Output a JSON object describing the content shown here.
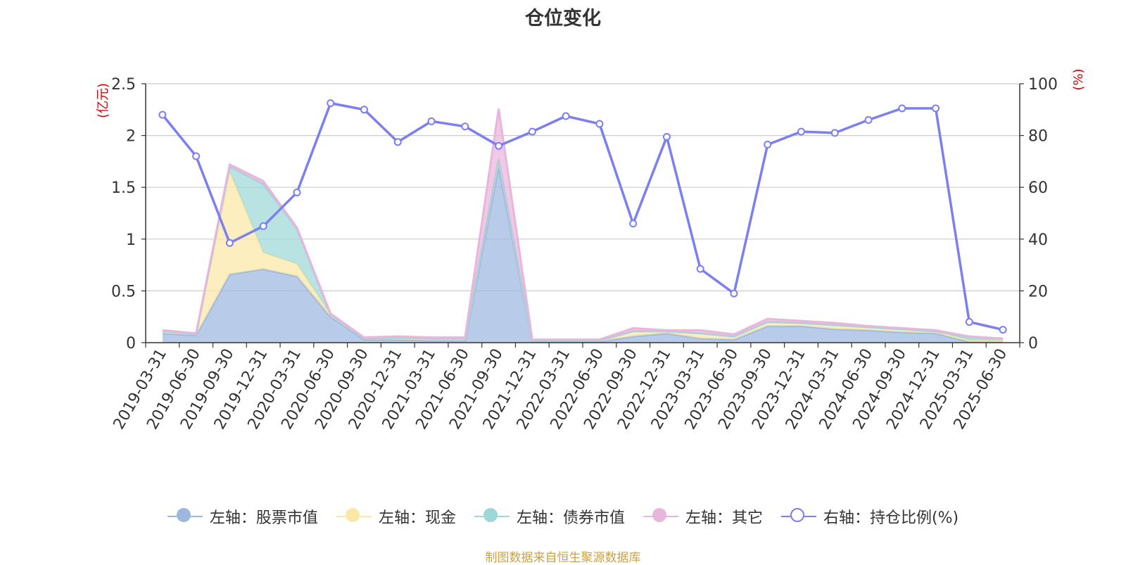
{
  "chart_data": {
    "type": "area",
    "title": "仓位变化",
    "left_axis_unit": "(亿元)",
    "right_axis_unit": "(%)",
    "left_ylim": [
      0,
      2.5
    ],
    "right_ylim": [
      0,
      100
    ],
    "left_ticks": [
      "0",
      "0.5",
      "1",
      "1.5",
      "2",
      "2.5"
    ],
    "right_ticks": [
      "0",
      "20",
      "40",
      "60",
      "80",
      "100"
    ],
    "grid": true,
    "legend_position": "bottom",
    "categories": [
      "2019-03-31",
      "2019-06-30",
      "2019-09-30",
      "2019-12-31",
      "2020-03-31",
      "2020-06-30",
      "2020-09-30",
      "2020-12-31",
      "2021-03-31",
      "2021-06-30",
      "2021-09-30",
      "2021-12-31",
      "2022-03-31",
      "2022-06-30",
      "2022-09-30",
      "2022-12-31",
      "2023-03-31",
      "2023-06-30",
      "2023-09-30",
      "2023-12-31",
      "2024-03-31",
      "2024-06-30",
      "2024-09-30",
      "2024-12-31",
      "2025-03-31",
      "2025-06-30"
    ],
    "series": [
      {
        "name": "左轴：股票市值",
        "axis": "left",
        "stack": true,
        "color": "#9db7e0",
        "values": [
          0.09,
          0.07,
          0.66,
          0.71,
          0.64,
          0.25,
          0.03,
          0.03,
          0.02,
          0.02,
          1.7,
          0.01,
          0.01,
          0.01,
          0.06,
          0.09,
          0.04,
          0.03,
          0.16,
          0.16,
          0.13,
          0.12,
          0.1,
          0.09,
          0.01,
          0.01
        ]
      },
      {
        "name": "左轴：现金",
        "axis": "left",
        "stack": true,
        "color": "#fbe8a6",
        "values": [
          0.02,
          0.01,
          0.99,
          0.16,
          0.12,
          0.02,
          0.01,
          0.02,
          0.02,
          0.02,
          0.07,
          0.01,
          0.01,
          0.01,
          0.05,
          0.02,
          0.05,
          0.03,
          0.04,
          0.03,
          0.04,
          0.03,
          0.03,
          0.02,
          0.01,
          0.01
        ]
      },
      {
        "name": "左轴：债券市值",
        "axis": "left",
        "stack": true,
        "color": "#9ed7d8",
        "values": [
          0,
          0,
          0.05,
          0.66,
          0.34,
          0,
          0,
          0,
          0,
          0,
          0,
          0,
          0,
          0,
          0,
          0,
          0,
          0,
          0,
          0,
          0,
          0,
          0,
          0,
          0.03,
          0.02
        ]
      },
      {
        "name": "左轴：其它",
        "axis": "left",
        "stack": true,
        "color": "#e8b6dd",
        "values": [
          0.01,
          0.01,
          0.02,
          0.03,
          0.01,
          0.01,
          0.01,
          0.01,
          0.01,
          0.01,
          0.49,
          0.01,
          0.01,
          0.01,
          0.03,
          0.01,
          0.03,
          0.02,
          0.03,
          0.02,
          0.02,
          0.01,
          0.01,
          0.01,
          0.01,
          0
        ]
      },
      {
        "name": "右轴：持仓比例(%)",
        "axis": "right",
        "stack": false,
        "color": "#7b7ff0",
        "values": [
          88,
          72,
          38.5,
          45,
          58,
          92.5,
          90,
          77.5,
          85.5,
          83.5,
          76,
          81.5,
          87.5,
          84.5,
          46,
          79.5,
          28.5,
          19,
          76.5,
          81.5,
          81,
          86,
          90.5,
          90.5,
          8,
          5
        ]
      }
    ]
  },
  "source_note": "制图数据来自恒生聚源数据库"
}
